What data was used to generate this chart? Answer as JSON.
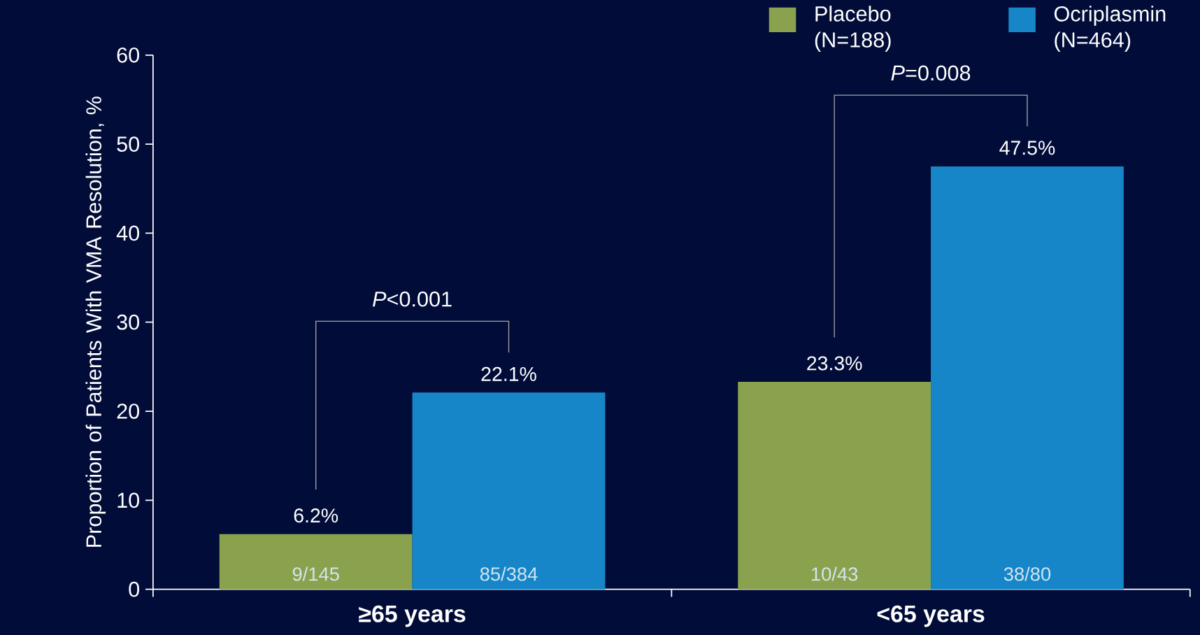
{
  "chart_data": {
    "type": "bar",
    "categories": [
      "≥65 years",
      "<65 years"
    ],
    "ylabel": "Proportion of Patients With VMA Resolution, %",
    "ylim": [
      0,
      60
    ],
    "yticks": [
      0,
      10,
      20,
      30,
      40,
      50,
      60
    ],
    "legend": "top right",
    "grid": false,
    "series": [
      {
        "name": "Placebo (N=188)",
        "color": "#8aa24e",
        "values": [
          6.2,
          23.3
        ],
        "value_labels": [
          "6.2%",
          "23.3%"
        ]
      },
      {
        "name": "Ocriplasmin (N=464)",
        "color": "#1686c9",
        "values": [
          22.1,
          47.5
        ],
        "value_labels": [
          "22.1%",
          "47.5%"
        ]
      }
    ],
    "annotations": [
      "9/145",
      "85/384",
      "10/43",
      "38/80",
      "*P*<0.001",
      "*P*=0.008"
    ]
  }
}
